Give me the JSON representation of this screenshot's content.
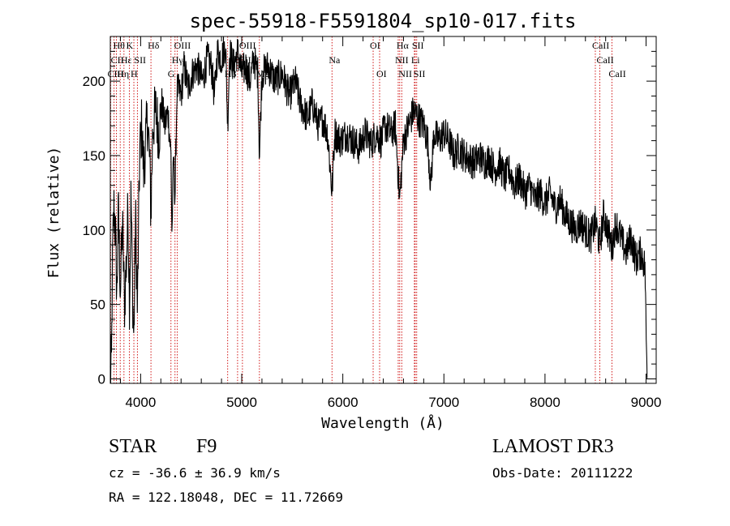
{
  "chart_data": {
    "type": "line",
    "title": "spec-55918-F5591804_sp10-017.fits",
    "xlabel": "Wavelength (Å)",
    "ylabel": "Flux (relative)",
    "xlim": [
      3700,
      9100
    ],
    "ylim": [
      -3,
      230
    ],
    "xticks": [
      4000,
      5000,
      6000,
      7000,
      8000,
      9000
    ],
    "yticks": [
      0,
      50,
      100,
      150,
      200
    ],
    "x_minor_step": 200,
    "y_minor_step": 10,
    "line_color": "#000000",
    "marker_color": "#cc0000",
    "spectrum_anchors": [
      [
        3700,
        2
      ],
      [
        3712,
        10
      ],
      [
        3722,
        80
      ],
      [
        3735,
        115
      ],
      [
        3750,
        100
      ],
      [
        3765,
        55
      ],
      [
        3780,
        112
      ],
      [
        3800,
        60
      ],
      [
        3820,
        105
      ],
      [
        3840,
        50
      ],
      [
        3860,
        80
      ],
      [
        3875,
        115
      ],
      [
        3890,
        50
      ],
      [
        3905,
        125
      ],
      [
        3920,
        60
      ],
      [
        3933,
        25
      ],
      [
        3950,
        110
      ],
      [
        3968,
        45
      ],
      [
        3990,
        150
      ],
      [
        4010,
        170
      ],
      [
        4030,
        140
      ],
      [
        4050,
        160
      ],
      [
        4070,
        175
      ],
      [
        4090,
        145
      ],
      [
        4102,
        110
      ],
      [
        4120,
        170
      ],
      [
        4150,
        180
      ],
      [
        4180,
        165
      ],
      [
        4210,
        185
      ],
      [
        4240,
        170
      ],
      [
        4270,
        180
      ],
      [
        4300,
        150
      ],
      [
        4310,
        95
      ],
      [
        4325,
        150
      ],
      [
        4340,
        120
      ],
      [
        4360,
        195
      ],
      [
        4400,
        190
      ],
      [
        4430,
        210
      ],
      [
        4470,
        195
      ],
      [
        4510,
        205
      ],
      [
        4560,
        210
      ],
      [
        4610,
        200
      ],
      [
        4660,
        215
      ],
      [
        4700,
        210
      ],
      [
        4730,
        190
      ],
      [
        4760,
        220
      ],
      [
        4800,
        215
      ],
      [
        4840,
        225
      ],
      [
        4861,
        170
      ],
      [
        4880,
        220
      ],
      [
        4920,
        210
      ],
      [
        4960,
        220
      ],
      [
        5000,
        205
      ],
      [
        5040,
        210
      ],
      [
        5080,
        200
      ],
      [
        5120,
        215
      ],
      [
        5160,
        205
      ],
      [
        5175,
        150
      ],
      [
        5200,
        205
      ],
      [
        5260,
        210
      ],
      [
        5330,
        200
      ],
      [
        5400,
        205
      ],
      [
        5470,
        190
      ],
      [
        5530,
        200
      ],
      [
        5580,
        185
      ],
      [
        5650,
        175
      ],
      [
        5700,
        185
      ],
      [
        5760,
        170
      ],
      [
        5800,
        175
      ],
      [
        5850,
        165
      ],
      [
        5893,
        125
      ],
      [
        5920,
        165
      ],
      [
        5980,
        160
      ],
      [
        6040,
        165
      ],
      [
        6100,
        160
      ],
      [
        6160,
        155
      ],
      [
        6220,
        165
      ],
      [
        6280,
        158
      ],
      [
        6330,
        165
      ],
      [
        6380,
        160
      ],
      [
        6420,
        170
      ],
      [
        6480,
        165
      ],
      [
        6520,
        170
      ],
      [
        6563,
        120
      ],
      [
        6600,
        160
      ],
      [
        6650,
        170
      ],
      [
        6700,
        180
      ],
      [
        6750,
        175
      ],
      [
        6800,
        170
      ],
      [
        6840,
        160
      ],
      [
        6870,
        130
      ],
      [
        6900,
        165
      ],
      [
        6950,
        160
      ],
      [
        7000,
        165
      ],
      [
        7050,
        160
      ],
      [
        7100,
        150
      ],
      [
        7150,
        155
      ],
      [
        7200,
        150
      ],
      [
        7250,
        148
      ],
      [
        7300,
        145
      ],
      [
        7350,
        150
      ],
      [
        7400,
        145
      ],
      [
        7450,
        148
      ],
      [
        7500,
        140
      ],
      [
        7550,
        145
      ],
      [
        7600,
        135
      ],
      [
        7650,
        140
      ],
      [
        7700,
        130
      ],
      [
        7750,
        135
      ],
      [
        7800,
        125
      ],
      [
        7850,
        130
      ],
      [
        7900,
        120
      ],
      [
        7950,
        125
      ],
      [
        8000,
        118
      ],
      [
        8050,
        125
      ],
      [
        8100,
        115
      ],
      [
        8150,
        120
      ],
      [
        8200,
        110
      ],
      [
        8250,
        105
      ],
      [
        8300,
        100
      ],
      [
        8350,
        105
      ],
      [
        8400,
        100
      ],
      [
        8450,
        95
      ],
      [
        8500,
        105
      ],
      [
        8542,
        90
      ],
      [
        8580,
        110
      ],
      [
        8620,
        100
      ],
      [
        8662,
        88
      ],
      [
        8700,
        105
      ],
      [
        8750,
        95
      ],
      [
        8800,
        85
      ],
      [
        8850,
        95
      ],
      [
        8900,
        80
      ],
      [
        8950,
        85
      ],
      [
        8990,
        75
      ],
      [
        9000,
        30
      ],
      [
        9010,
        5
      ]
    ],
    "noise_amplitude": 12,
    "line_markers": [
      {
        "wavelength": 3704,
        "label": "CIII",
        "tier": 2,
        "side": "right"
      },
      {
        "wavelength": 3737,
        "label": "CII",
        "tier": 1,
        "side": "right"
      },
      {
        "wavelength": 3760,
        "label": "Hθ",
        "tier": 0,
        "side": "right"
      },
      {
        "wavelength": 3798,
        "label": "Hη",
        "tier": 2,
        "side": "right"
      },
      {
        "wavelength": 3835,
        "label": "Hε",
        "tier": 1,
        "side": "right"
      },
      {
        "wavelength": 3889,
        "label": "K",
        "tier": 0,
        "side": "right"
      },
      {
        "wavelength": 3933,
        "label": "H",
        "tier": 2,
        "side": "right"
      },
      {
        "wavelength": 3968,
        "label": "SII",
        "tier": 1,
        "side": "right"
      },
      {
        "wavelength": 4102,
        "label": "Hδ",
        "tier": 0,
        "side": "right"
      },
      {
        "wavelength": 4300,
        "label": "G",
        "tier": 2,
        "side": "right"
      },
      {
        "wavelength": 4340,
        "label": "Hγ",
        "tier": 1,
        "side": "right"
      },
      {
        "wavelength": 4363,
        "label": "OIII",
        "tier": 0,
        "side": "right"
      },
      {
        "wavelength": 4861,
        "label": "Hβ",
        "tier": 2,
        "side": "right"
      },
      {
        "wavelength": 4959,
        "label": "OIII",
        "tier": 1,
        "side": "right"
      },
      {
        "wavelength": 5007,
        "label": "OIII",
        "tier": 0,
        "side": "right"
      },
      {
        "wavelength": 5175,
        "label": "Mg",
        "tier": 2,
        "side": "right"
      },
      {
        "wavelength": 5893,
        "label": "Na",
        "tier": 1,
        "side": "right"
      },
      {
        "wavelength": 6300,
        "label": "OI",
        "tier": 0,
        "side": "right"
      },
      {
        "wavelength": 6364,
        "label": "OI",
        "tier": 2,
        "side": "right"
      },
      {
        "wavelength": 6548,
        "label": "NII",
        "tier": 1,
        "side": "right"
      },
      {
        "wavelength": 6563,
        "label": "Hα",
        "tier": 0,
        "side": "right"
      },
      {
        "wavelength": 6583,
        "label": "NII",
        "tier": 2,
        "side": "right"
      },
      {
        "wavelength": 6708,
        "label": "Li",
        "tier": 1,
        "side": "right"
      },
      {
        "wavelength": 6716,
        "label": "SII",
        "tier": 0,
        "side": "right"
      },
      {
        "wavelength": 6731,
        "label": "SII",
        "tier": 2,
        "side": "right"
      },
      {
        "wavelength": 8498,
        "label": "CaII",
        "tier": 0,
        "side": "right"
      },
      {
        "wavelength": 8542,
        "label": "CaII",
        "tier": 1,
        "side": "right"
      },
      {
        "wavelength": 8662,
        "label": "CaII",
        "tier": 2,
        "side": "right"
      }
    ]
  },
  "info": {
    "object_type": "STAR",
    "subclass": "F9",
    "survey": "LAMOST DR3",
    "redshift": "cz = -36.6 ± 36.9 km/s",
    "obs_date": "Obs-Date: 20111222",
    "coords": "RA = 122.18048, DEC =  11.72669"
  }
}
